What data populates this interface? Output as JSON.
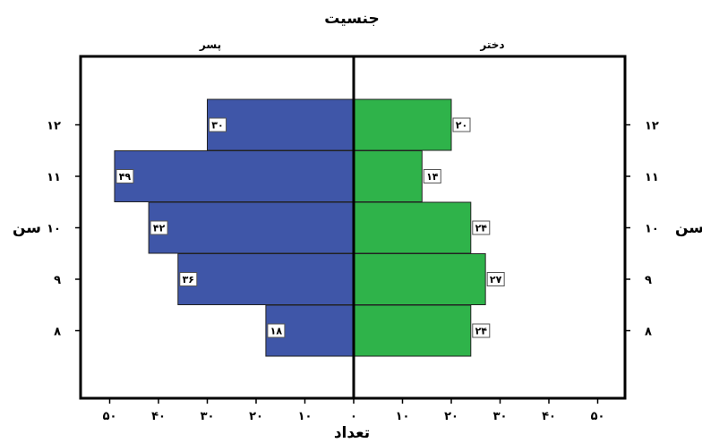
{
  "chart_data": {
    "type": "bar",
    "orientation": "horizontal",
    "layout": "population-pyramid",
    "title": "جنسیت",
    "ylabel": "سن",
    "xlabel": "تعداد",
    "categories": [
      "۱۲",
      "۱۱",
      "۱۰",
      "۹",
      "۸"
    ],
    "series": [
      {
        "name": "پسر",
        "side": "left",
        "color": "#3f56a8",
        "values": [
          30,
          49,
          42,
          36,
          18
        ],
        "labels": [
          "۳۰",
          "۴۹",
          "۴۲",
          "۳۶",
          "۱۸"
        ]
      },
      {
        "name": "دختر",
        "side": "right",
        "color": "#2fb34a",
        "values": [
          20,
          14,
          24,
          27,
          24
        ],
        "labels": [
          "۲۰",
          "۱۴",
          "۲۴",
          "۲۷",
          "۲۴"
        ]
      }
    ],
    "xlim": [
      0,
      50
    ],
    "xticks": [
      {
        "value": 50,
        "label": "۵۰"
      },
      {
        "value": 40,
        "label": "۴۰"
      },
      {
        "value": 30,
        "label": "۳۰"
      },
      {
        "value": 20,
        "label": "۲۰"
      },
      {
        "value": 10,
        "label": "۱۰"
      },
      {
        "value": 0,
        "label": "۰"
      }
    ],
    "xticks_right": [
      {
        "value": 10,
        "label": "۱۰"
      },
      {
        "value": 20,
        "label": "۲۰"
      },
      {
        "value": 30,
        "label": "۳۰"
      },
      {
        "value": 40,
        "label": "۴۰"
      },
      {
        "value": 50,
        "label": "۵۰"
      }
    ],
    "grid": false,
    "legend": "none"
  }
}
